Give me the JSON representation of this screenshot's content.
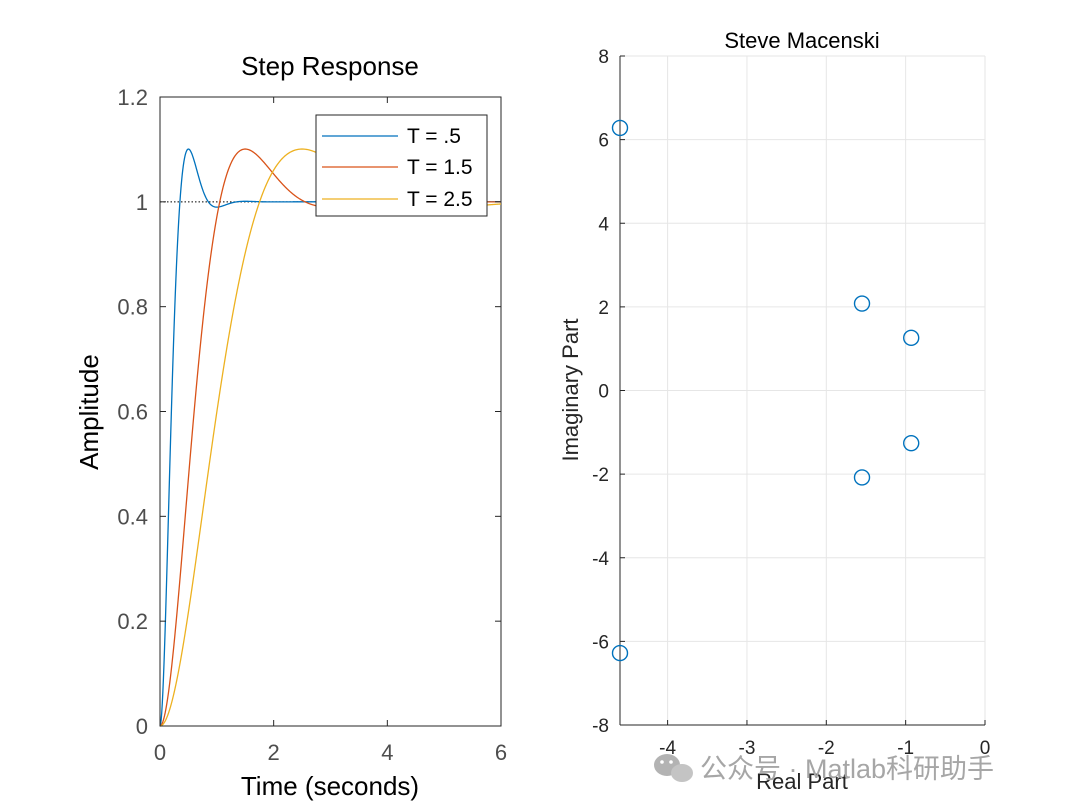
{
  "colors": {
    "series_blue": "#0072BD",
    "series_orange": "#D95319",
    "series_yellow": "#EDB120",
    "axis": "#262626",
    "grid": "#e6e6e6",
    "watermark": "#a6a6a6"
  },
  "chart_data": [
    {
      "type": "line",
      "title": "Step Response",
      "xlabel": "Time (seconds)",
      "ylabel": "Amplitude",
      "xlim": [
        0,
        6
      ],
      "ylim": [
        0,
        1.2
      ],
      "xticks": [
        "0",
        "2",
        "4",
        "6"
      ],
      "yticks": [
        "0",
        "0.2",
        "0.4",
        "0.6",
        "0.8",
        "1",
        "1.2"
      ],
      "reference_line": 1,
      "legend_position": "top-right",
      "series": [
        {
          "name": "T = .5",
          "color": "#0072BD",
          "peak_time": 0.5,
          "peak_value": 1.1
        },
        {
          "name": "T = 1.5",
          "color": "#D95319",
          "peak_time": 1.5,
          "peak_value": 1.1
        },
        {
          "name": "T = 2.5",
          "color": "#EDB120",
          "peak_time": 2.5,
          "peak_value": 1.1
        }
      ]
    },
    {
      "type": "scatter",
      "title": "Steve Macenski",
      "xlabel": "Real Part",
      "ylabel": "Imaginary Part",
      "xlim": [
        -4.6,
        0
      ],
      "ylim": [
        -8,
        8
      ],
      "xticks": [
        "-4",
        "-3",
        "-2",
        "-1",
        "0"
      ],
      "yticks": [
        "-8",
        "-6",
        "-4",
        "-2",
        "0",
        "2",
        "4",
        "6",
        "8"
      ],
      "grid": true,
      "marker": "circle-open",
      "points": [
        {
          "x": -4.6,
          "y": 6.28
        },
        {
          "x": -4.6,
          "y": -6.28
        },
        {
          "x": -1.55,
          "y": 2.08
        },
        {
          "x": -1.55,
          "y": -2.08
        },
        {
          "x": -0.93,
          "y": 1.26
        },
        {
          "x": -0.93,
          "y": -1.26
        }
      ]
    }
  ],
  "watermark": {
    "text": "公众号 · Matlab科研助手"
  }
}
